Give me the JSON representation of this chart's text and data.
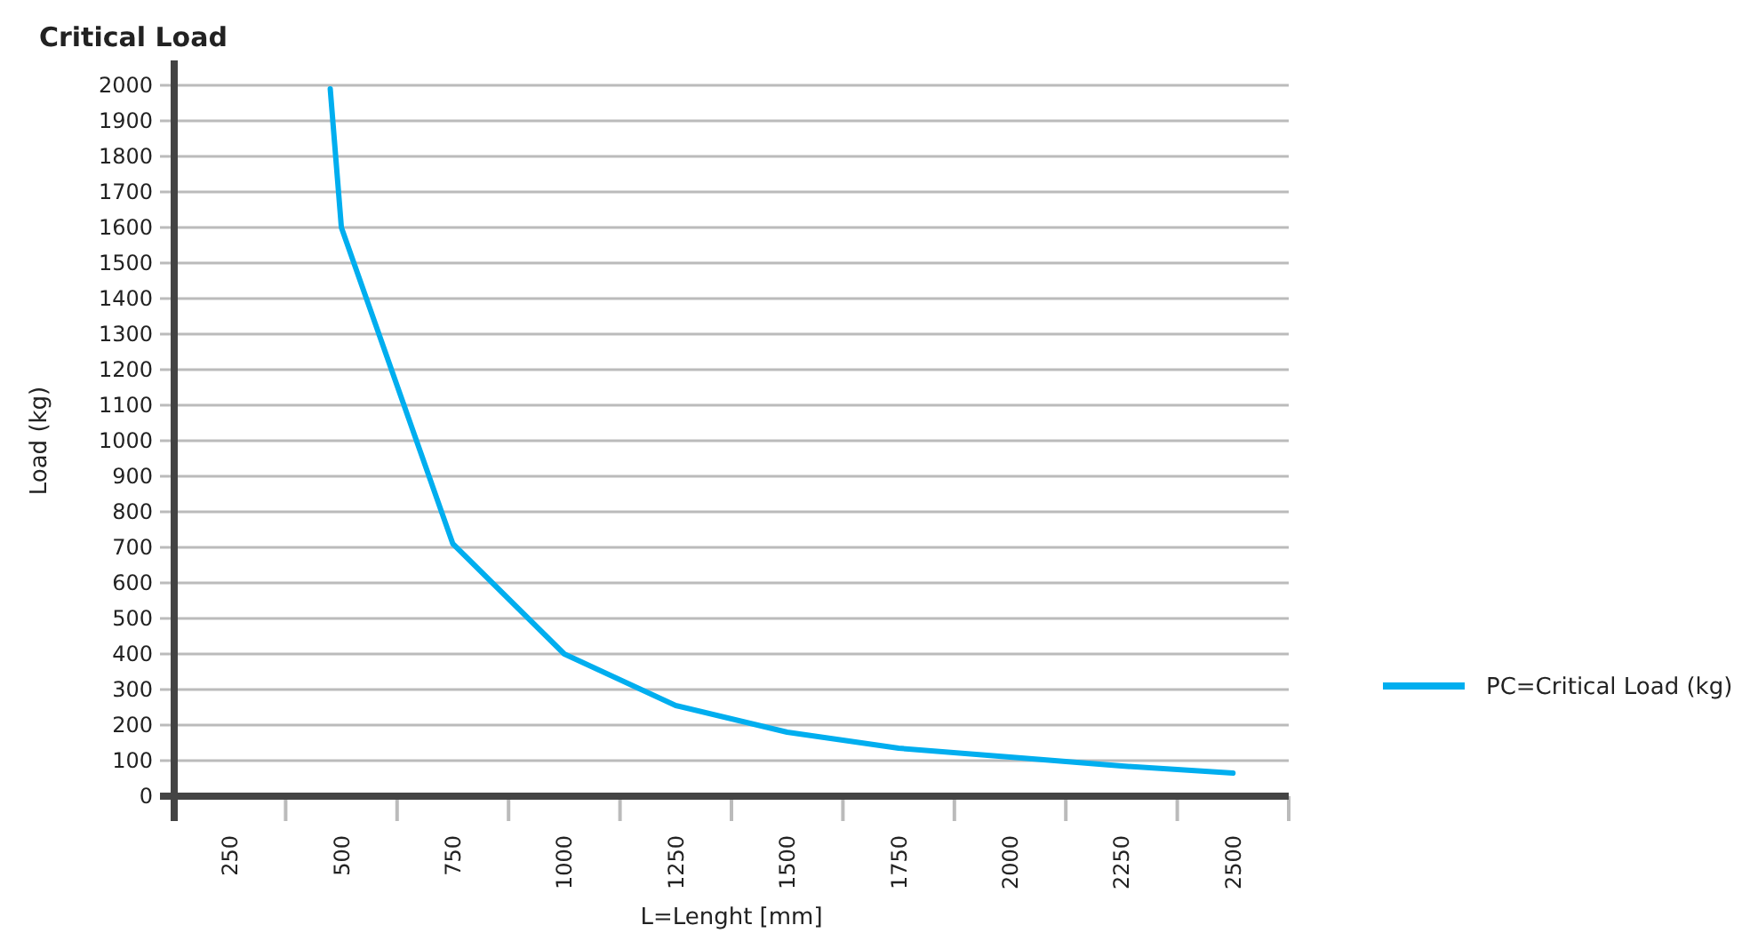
{
  "chart_data": {
    "type": "line",
    "title": "Critical Load",
    "xlabel": "L=Lenght [mm]",
    "ylabel": "Load (kg)",
    "xlim": [
      125,
      2625
    ],
    "xticks": [
      250,
      500,
      750,
      1000,
      1250,
      1500,
      1750,
      2000,
      2250,
      2500,
      {
        "value": 375,
        "label": null
      },
      {
        "value": 625,
        "label": null
      },
      {
        "value": 875,
        "label": null
      },
      {
        "value": 1125,
        "label": null
      },
      {
        "value": 1375,
        "label": null
      },
      {
        "value": 1625,
        "label": null
      },
      {
        "value": 1875,
        "label": null
      },
      {
        "value": 2125,
        "label": null
      },
      {
        "value": 2375,
        "label": null
      },
      {
        "value": 2625,
        "label": null
      }
    ],
    "ylim": [
      0,
      2000
    ],
    "yticks": [
      0,
      100,
      200,
      300,
      400,
      500,
      600,
      700,
      800,
      900,
      1000,
      1100,
      1200,
      1300,
      1400,
      1500,
      1600,
      1700,
      1800,
      1900,
      2000
    ],
    "grid": "y",
    "legend": "right",
    "marker": "none",
    "line_style": "solid",
    "series": [
      {
        "name": "PC=Critical Load (kg)",
        "color": "#00aeef",
        "x": [
          475,
          500,
          750,
          1000,
          1250,
          1500,
          1750,
          2000,
          2250,
          2500
        ],
        "values": [
          1990,
          1600,
          710,
          400,
          255,
          180,
          135,
          110,
          85,
          65
        ]
      }
    ]
  }
}
